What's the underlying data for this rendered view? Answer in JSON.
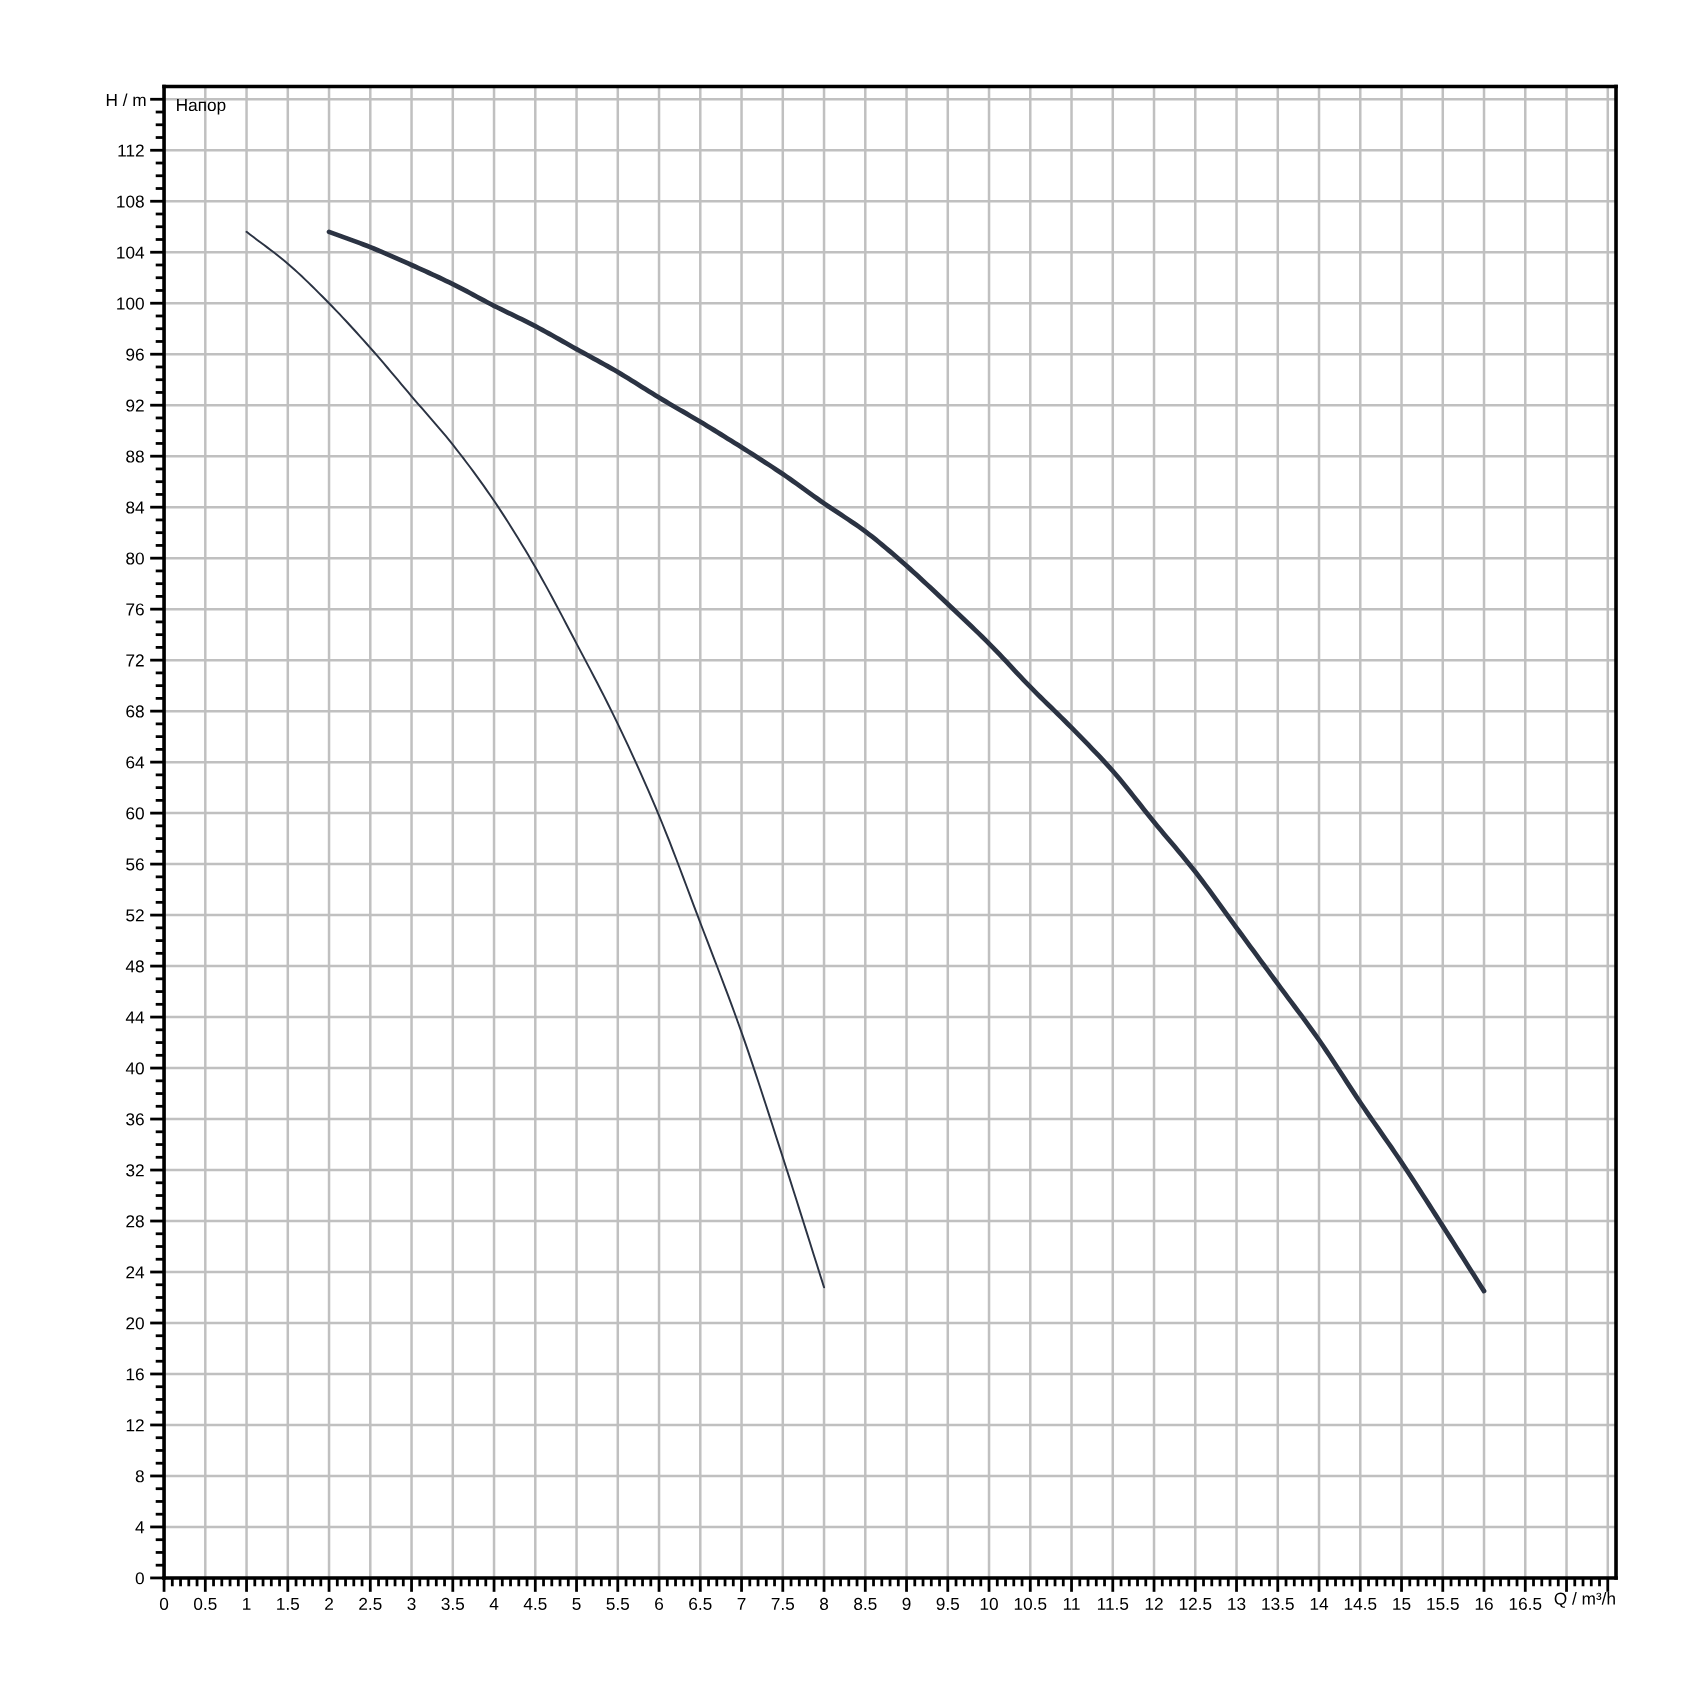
{
  "chart_data": {
    "type": "line",
    "xlabel": "Q / m³/h",
    "ylabel": "H / m",
    "annotations": [
      "Напор"
    ],
    "grid": true,
    "xlim": [
      0,
      17.6
    ],
    "ylim": [
      0,
      117
    ],
    "xticks": [
      0,
      0.5,
      1,
      1.5,
      2,
      2.5,
      3,
      3.5,
      4,
      4.5,
      5,
      5.5,
      6,
      6.5,
      7,
      7.5,
      8,
      8.5,
      9,
      9.5,
      10,
      10.5,
      11,
      11.5,
      12,
      12.5,
      13,
      13.5,
      14,
      14.5,
      15,
      15.5,
      16,
      16.5,
      {
        "value": 17,
        "label": null
      },
      {
        "value": 17.5,
        "label": null
      },
      {
        "value": 0.1,
        "label": null
      },
      {
        "value": 0.2,
        "label": null
      },
      {
        "value": 0.3,
        "label": null
      },
      {
        "value": 0.4,
        "label": null
      },
      {
        "value": 0.6,
        "label": null
      },
      {
        "value": 0.7,
        "label": null
      },
      {
        "value": 0.8,
        "label": null
      },
      {
        "value": 0.9,
        "label": null
      },
      {
        "value": 1.1,
        "label": null
      },
      {
        "value": 1.2,
        "label": null
      },
      {
        "value": 1.3,
        "label": null
      },
      {
        "value": 1.4,
        "label": null
      },
      {
        "value": 1.6,
        "label": null
      },
      {
        "value": 1.7,
        "label": null
      },
      {
        "value": 1.8,
        "label": null
      },
      {
        "value": 1.9,
        "label": null
      },
      {
        "value": 2.1,
        "label": null
      },
      {
        "value": 2.2,
        "label": null
      },
      {
        "value": 2.3,
        "label": null
      },
      {
        "value": 2.4,
        "label": null
      },
      {
        "value": 2.6,
        "label": null
      },
      {
        "value": 2.7,
        "label": null
      },
      {
        "value": 2.8,
        "label": null
      },
      {
        "value": 2.9,
        "label": null
      },
      {
        "value": 3.1,
        "label": null
      },
      {
        "value": 3.2,
        "label": null
      },
      {
        "value": 3.3,
        "label": null
      },
      {
        "value": 3.4,
        "label": null
      },
      {
        "value": 3.6,
        "label": null
      },
      {
        "value": 3.7,
        "label": null
      },
      {
        "value": 3.8,
        "label": null
      },
      {
        "value": 3.9,
        "label": null
      },
      {
        "value": 4.1,
        "label": null
      },
      {
        "value": 4.2,
        "label": null
      },
      {
        "value": 4.3,
        "label": null
      },
      {
        "value": 4.4,
        "label": null
      },
      {
        "value": 4.6,
        "label": null
      },
      {
        "value": 4.7,
        "label": null
      },
      {
        "value": 4.8,
        "label": null
      },
      {
        "value": 4.9,
        "label": null
      },
      {
        "value": 5.1,
        "label": null
      },
      {
        "value": 5.2,
        "label": null
      },
      {
        "value": 5.3,
        "label": null
      },
      {
        "value": 5.4,
        "label": null
      },
      {
        "value": 5.6,
        "label": null
      },
      {
        "value": 5.7,
        "label": null
      },
      {
        "value": 5.8,
        "label": null
      },
      {
        "value": 5.9,
        "label": null
      },
      {
        "value": 6.1,
        "label": null
      },
      {
        "value": 6.2,
        "label": null
      },
      {
        "value": 6.3,
        "label": null
      },
      {
        "value": 6.4,
        "label": null
      },
      {
        "value": 6.6,
        "label": null
      },
      {
        "value": 6.7,
        "label": null
      },
      {
        "value": 6.8,
        "label": null
      },
      {
        "value": 6.9,
        "label": null
      },
      {
        "value": 7.1,
        "label": null
      },
      {
        "value": 7.2,
        "label": null
      },
      {
        "value": 7.3,
        "label": null
      },
      {
        "value": 7.4,
        "label": null
      },
      {
        "value": 7.6,
        "label": null
      },
      {
        "value": 7.7,
        "label": null
      },
      {
        "value": 7.8,
        "label": null
      },
      {
        "value": 7.9,
        "label": null
      },
      {
        "value": 8.1,
        "label": null
      },
      {
        "value": 8.2,
        "label": null
      },
      {
        "value": 8.3,
        "label": null
      },
      {
        "value": 8.4,
        "label": null
      },
      {
        "value": 8.6,
        "label": null
      },
      {
        "value": 8.7,
        "label": null
      },
      {
        "value": 8.8,
        "label": null
      },
      {
        "value": 8.9,
        "label": null
      },
      {
        "value": 9.1,
        "label": null
      },
      {
        "value": 9.2,
        "label": null
      },
      {
        "value": 9.3,
        "label": null
      },
      {
        "value": 9.4,
        "label": null
      },
      {
        "value": 9.6,
        "label": null
      },
      {
        "value": 9.7,
        "label": null
      },
      {
        "value": 9.8,
        "label": null
      },
      {
        "value": 9.9,
        "label": null
      },
      {
        "value": 10.1,
        "label": null
      },
      {
        "value": 10.2,
        "label": null
      },
      {
        "value": 10.3,
        "label": null
      },
      {
        "value": 10.4,
        "label": null
      },
      {
        "value": 10.6,
        "label": null
      },
      {
        "value": 10.7,
        "label": null
      },
      {
        "value": 10.8,
        "label": null
      },
      {
        "value": 10.9,
        "label": null
      },
      {
        "value": 11.1,
        "label": null
      },
      {
        "value": 11.2,
        "label": null
      },
      {
        "value": 11.3,
        "label": null
      },
      {
        "value": 11.4,
        "label": null
      },
      {
        "value": 11.6,
        "label": null
      },
      {
        "value": 11.7,
        "label": null
      },
      {
        "value": 11.8,
        "label": null
      },
      {
        "value": 11.9,
        "label": null
      },
      {
        "value": 12.1,
        "label": null
      },
      {
        "value": 12.2,
        "label": null
      },
      {
        "value": 12.3,
        "label": null
      },
      {
        "value": 12.4,
        "label": null
      },
      {
        "value": 12.6,
        "label": null
      },
      {
        "value": 12.7,
        "label": null
      },
      {
        "value": 12.8,
        "label": null
      },
      {
        "value": 12.9,
        "label": null
      },
      {
        "value": 13.1,
        "label": null
      },
      {
        "value": 13.2,
        "label": null
      },
      {
        "value": 13.3,
        "label": null
      },
      {
        "value": 13.4,
        "label": null
      },
      {
        "value": 13.6,
        "label": null
      },
      {
        "value": 13.7,
        "label": null
      },
      {
        "value": 13.8,
        "label": null
      },
      {
        "value": 13.9,
        "label": null
      },
      {
        "value": 14.1,
        "label": null
      },
      {
        "value": 14.2,
        "label": null
      },
      {
        "value": 14.3,
        "label": null
      },
      {
        "value": 14.4,
        "label": null
      },
      {
        "value": 14.6,
        "label": null
      },
      {
        "value": 14.7,
        "label": null
      },
      {
        "value": 14.8,
        "label": null
      },
      {
        "value": 14.9,
        "label": null
      },
      {
        "value": 15.1,
        "label": null
      },
      {
        "value": 15.2,
        "label": null
      },
      {
        "value": 15.3,
        "label": null
      },
      {
        "value": 15.4,
        "label": null
      },
      {
        "value": 15.6,
        "label": null
      },
      {
        "value": 15.7,
        "label": null
      },
      {
        "value": 15.8,
        "label": null
      },
      {
        "value": 15.9,
        "label": null
      },
      {
        "value": 16.1,
        "label": null
      },
      {
        "value": 16.2,
        "label": null
      },
      {
        "value": 16.3,
        "label": null
      },
      {
        "value": 16.4,
        "label": null
      },
      {
        "value": 16.6,
        "label": null
      },
      {
        "value": 16.7,
        "label": null
      },
      {
        "value": 16.8,
        "label": null
      },
      {
        "value": 16.9,
        "label": null
      },
      {
        "value": 17.1,
        "label": null
      },
      {
        "value": 17.2,
        "label": null
      },
      {
        "value": 17.3,
        "label": null
      },
      {
        "value": 17.4,
        "label": null
      }
    ],
    "yticks": [
      0,
      4,
      8,
      12,
      16,
      20,
      24,
      28,
      32,
      36,
      40,
      44,
      48,
      52,
      56,
      60,
      64,
      68,
      72,
      76,
      80,
      84,
      88,
      92,
      96,
      100,
      104,
      108,
      112,
      {
        "value": 116,
        "label": null
      },
      {
        "value": 1,
        "label": null
      },
      {
        "value": 2,
        "label": null
      },
      {
        "value": 3,
        "label": null
      },
      {
        "value": 5,
        "label": null
      },
      {
        "value": 6,
        "label": null
      },
      {
        "value": 7,
        "label": null
      },
      {
        "value": 9,
        "label": null
      },
      {
        "value": 10,
        "label": null
      },
      {
        "value": 11,
        "label": null
      },
      {
        "value": 13,
        "label": null
      },
      {
        "value": 14,
        "label": null
      },
      {
        "value": 15,
        "label": null
      },
      {
        "value": 17,
        "label": null
      },
      {
        "value": 18,
        "label": null
      },
      {
        "value": 19,
        "label": null
      },
      {
        "value": 21,
        "label": null
      },
      {
        "value": 22,
        "label": null
      },
      {
        "value": 23,
        "label": null
      },
      {
        "value": 25,
        "label": null
      },
      {
        "value": 26,
        "label": null
      },
      {
        "value": 27,
        "label": null
      },
      {
        "value": 29,
        "label": null
      },
      {
        "value": 30,
        "label": null
      },
      {
        "value": 31,
        "label": null
      },
      {
        "value": 33,
        "label": null
      },
      {
        "value": 34,
        "label": null
      },
      {
        "value": 35,
        "label": null
      },
      {
        "value": 37,
        "label": null
      },
      {
        "value": 38,
        "label": null
      },
      {
        "value": 39,
        "label": null
      },
      {
        "value": 41,
        "label": null
      },
      {
        "value": 42,
        "label": null
      },
      {
        "value": 43,
        "label": null
      },
      {
        "value": 45,
        "label": null
      },
      {
        "value": 46,
        "label": null
      },
      {
        "value": 47,
        "label": null
      },
      {
        "value": 49,
        "label": null
      },
      {
        "value": 50,
        "label": null
      },
      {
        "value": 51,
        "label": null
      },
      {
        "value": 53,
        "label": null
      },
      {
        "value": 54,
        "label": null
      },
      {
        "value": 55,
        "label": null
      },
      {
        "value": 57,
        "label": null
      },
      {
        "value": 58,
        "label": null
      },
      {
        "value": 59,
        "label": null
      },
      {
        "value": 61,
        "label": null
      },
      {
        "value": 62,
        "label": null
      },
      {
        "value": 63,
        "label": null
      },
      {
        "value": 65,
        "label": null
      },
      {
        "value": 66,
        "label": null
      },
      {
        "value": 67,
        "label": null
      },
      {
        "value": 69,
        "label": null
      },
      {
        "value": 70,
        "label": null
      },
      {
        "value": 71,
        "label": null
      },
      {
        "value": 73,
        "label": null
      },
      {
        "value": 74,
        "label": null
      },
      {
        "value": 75,
        "label": null
      },
      {
        "value": 77,
        "label": null
      },
      {
        "value": 78,
        "label": null
      },
      {
        "value": 79,
        "label": null
      },
      {
        "value": 81,
        "label": null
      },
      {
        "value": 82,
        "label": null
      },
      {
        "value": 83,
        "label": null
      },
      {
        "value": 85,
        "label": null
      },
      {
        "value": 86,
        "label": null
      },
      {
        "value": 87,
        "label": null
      },
      {
        "value": 89,
        "label": null
      },
      {
        "value": 90,
        "label": null
      },
      {
        "value": 91,
        "label": null
      },
      {
        "value": 93,
        "label": null
      },
      {
        "value": 94,
        "label": null
      },
      {
        "value": 95,
        "label": null
      },
      {
        "value": 97,
        "label": null
      },
      {
        "value": 98,
        "label": null
      },
      {
        "value": 99,
        "label": null
      },
      {
        "value": 101,
        "label": null
      },
      {
        "value": 102,
        "label": null
      },
      {
        "value": 103,
        "label": null
      },
      {
        "value": 105,
        "label": null
      },
      {
        "value": 106,
        "label": null
      },
      {
        "value": 107,
        "label": null
      },
      {
        "value": 109,
        "label": null
      },
      {
        "value": 110,
        "label": null
      },
      {
        "value": 111,
        "label": null
      },
      {
        "value": 113,
        "label": null
      },
      {
        "value": 114,
        "label": null
      },
      {
        "value": 115,
        "label": null
      }
    ],
    "series": [
      {
        "color": "#2b3343",
        "x": [
          1,
          1.5,
          2,
          2.5,
          3,
          3.5,
          4,
          4.5,
          5,
          5.5,
          6,
          6.5,
          7,
          7.5,
          8
        ],
        "values": [
          105.6,
          103.1,
          100.0,
          96.5,
          92.7,
          88.9,
          84.5,
          79.3,
          73.3,
          67.0,
          59.8,
          51.4,
          42.8,
          33.0,
          22.8
        ]
      },
      {
        "color": "#2b3343",
        "x": [
          2,
          2.5,
          3,
          3.5,
          4,
          4.5,
          5,
          5.5,
          6,
          6.5,
          7,
          7.5,
          8,
          8.5,
          9,
          9.5,
          10,
          10.5,
          11,
          11.5,
          12,
          12.5,
          13,
          13.5,
          14,
          14.5,
          15,
          15.5,
          16
        ],
        "values": [
          105.6,
          104.4,
          103.0,
          101.5,
          99.8,
          98.2,
          96.4,
          94.6,
          92.6,
          90.7,
          88.7,
          86.6,
          84.3,
          82.1,
          79.4,
          76.4,
          73.3,
          69.9,
          66.7,
          63.3,
          59.3,
          55.4,
          51.0,
          46.6,
          42.2,
          37.3,
          32.6,
          27.6,
          22.5
        ]
      }
    ]
  }
}
